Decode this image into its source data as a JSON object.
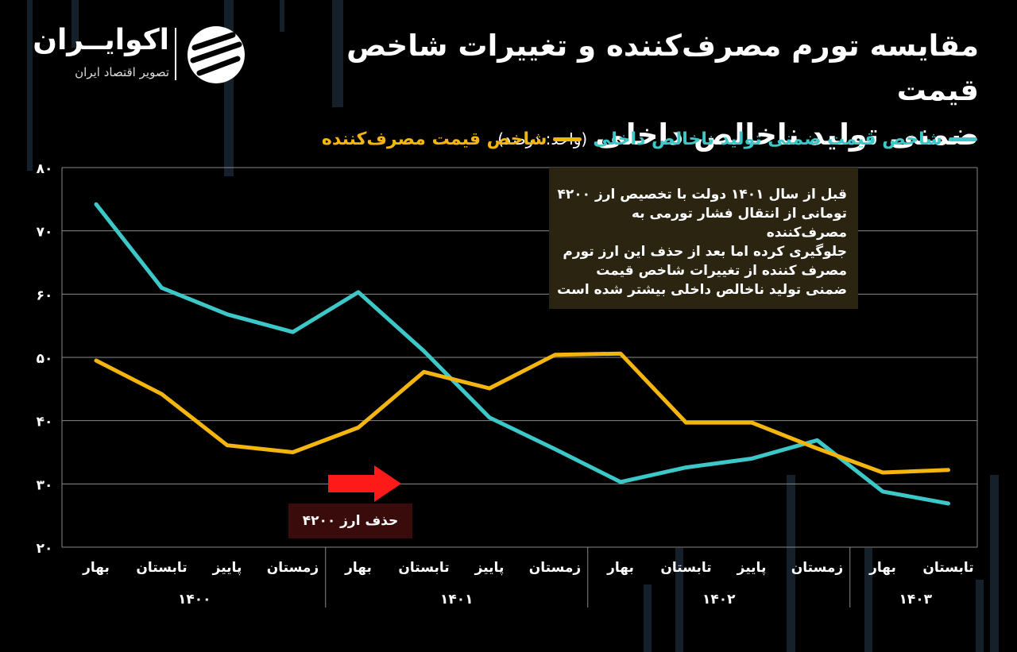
{
  "header": {
    "title_line1": "مقایسه تورم مصرف‌کننده و تغییرات شاخص قیمت",
    "title_line2": "ضمنی تولید ناخالص داخلی",
    "unit": "(واحد: درصد)"
  },
  "logo": {
    "name": "اکوایــران",
    "subtitle": "تصویر اقتصاد ایران"
  },
  "legend": {
    "gdp_label": "شاخص قیمت ضمنی تولید ناخالص داخلی",
    "cpi_label": "شاخص قیمت مصرف‌کننده"
  },
  "annotation": {
    "lines": [
      "قبل از سال ۱۴۰۱ دولت با تخصیص ارز ۴۲۰۰",
      "تومانی از انتقال فشار تورمی به مصرف‌کننده",
      "جلوگیری کرده اما بعد از حذف این ارز تورم",
      "مصرف کننده از تغییرات شاخص قیمت",
      "ضمنی تولید ناخالص داخلی بیشتر شده است"
    ]
  },
  "marker": {
    "label": "حذف ارز ۴۲۰۰"
  },
  "colors": {
    "gdp": "#3cc8c8",
    "cpi": "#f5b50f",
    "grid": "#8a8a8a",
    "arrow": "#ff1a1a"
  },
  "chart_data": {
    "type": "line",
    "ylim": [
      20,
      80
    ],
    "yticks": [
      "۲۰",
      "۳۰",
      "۴۰",
      "۵۰",
      "۶۰",
      "۷۰",
      "۸۰"
    ],
    "categories": [
      "بهار",
      "تابستان",
      "پاییز",
      "زمستان",
      "بهار",
      "تابستان",
      "پاییز",
      "زمستان",
      "بهار",
      "تابستان",
      "پاییز",
      "زمستان",
      "بهار",
      "تابستان"
    ],
    "years": [
      {
        "label": "۱۴۰۰",
        "start": 0,
        "end": 3
      },
      {
        "label": "۱۴۰۱",
        "start": 4,
        "end": 7
      },
      {
        "label": "۱۴۰۲",
        "start": 8,
        "end": 11
      },
      {
        "label": "۱۴۰۳",
        "start": 12,
        "end": 13
      }
    ],
    "series": [
      {
        "name": "شاخص قیمت ضمنی تولید ناخالص داخلی",
        "key": "gdp",
        "values": [
          74.2,
          61,
          56.8,
          54,
          60.3,
          51,
          40.5,
          35.5,
          30.3,
          32.6,
          34,
          36.9,
          28.8,
          26.9
        ]
      },
      {
        "name": "شاخص قیمت مصرف‌کننده",
        "key": "cpi",
        "values": [
          49.5,
          44.2,
          36.1,
          35,
          38.9,
          47.7,
          45.1,
          50.4,
          50.6,
          39.7,
          39.7,
          35.6,
          31.8,
          32.2
        ]
      }
    ],
    "highlight_start_index": 4
  }
}
